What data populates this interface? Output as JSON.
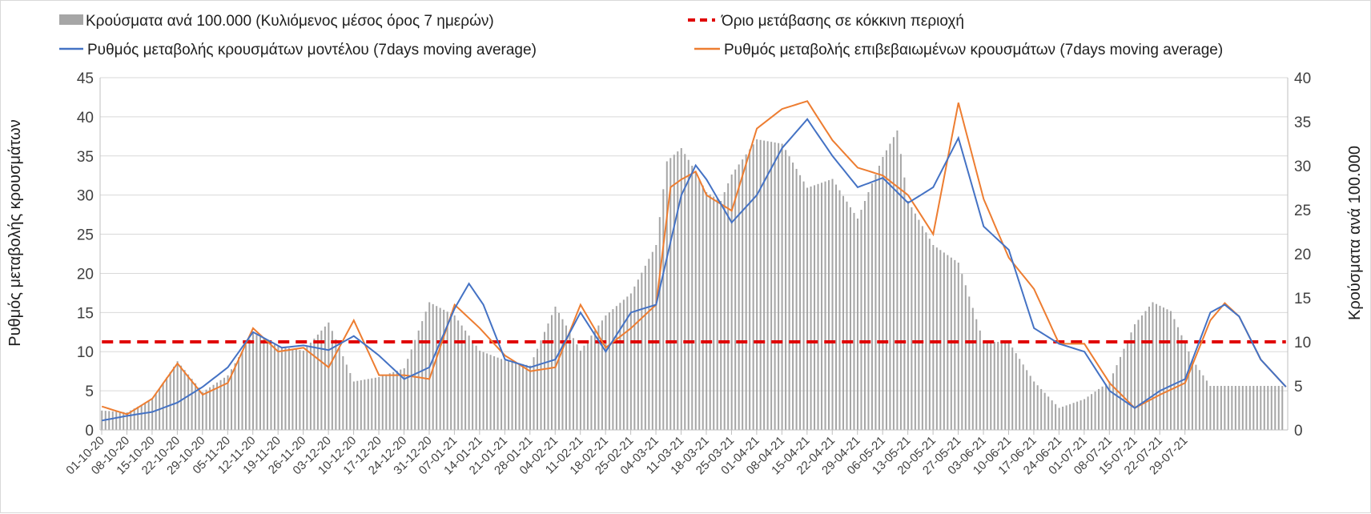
{
  "chart_data": {
    "type": "bar+line",
    "legend": {
      "bars": "Κρούσματα ανά 100.000 (Κυλιόμενος μέσος όρος 7 ημερών)",
      "threshold": "Όριο μετάβασης σε κόκκινη περιοχή",
      "model": "Ρυθμός μεταβολής κρουσμάτων μοντέλου (7days moving average)",
      "confirmed": "Ρυθμός μεταβολής επιβεβαιωμένων κρουσμάτων (7days moving average)"
    },
    "ylabel_left": "Ρυθμός μεταβολής κρουσμάτων",
    "ylabel_right": "Κρούσματα ανά 100.000",
    "y_left": {
      "min": 0,
      "max": 45,
      "step": 5,
      "ticks": [
        "0",
        "5",
        "10",
        "15",
        "20",
        "25",
        "30",
        "35",
        "40",
        "45"
      ]
    },
    "y_right": {
      "min": 0,
      "max": 40,
      "step": 5,
      "ticks": [
        "0",
        "5",
        "10",
        "15",
        "20",
        "25",
        "30",
        "35",
        "40"
      ]
    },
    "x_tick_labels": [
      "01-10-20",
      "08-10-20",
      "15-10-20",
      "22-10-20",
      "29-10-20",
      "05-11-20",
      "12-11-20",
      "19-11-20",
      "26-11-20",
      "03-12-20",
      "10-12-20",
      "17-12-20",
      "24-12-20",
      "31-12-20",
      "07-01-21",
      "14-01-21",
      "21-01-21",
      "28-01-21",
      "04-02-21",
      "11-02-21",
      "18-02-21",
      "25-02-21",
      "04-03-21",
      "11-03-21",
      "18-03-21",
      "25-03-21",
      "01-04-21",
      "08-04-21",
      "15-04-21",
      "22-04-21",
      "29-04-21",
      "06-05-21",
      "13-05-21",
      "20-05-21",
      "27-05-21",
      "03-06-21",
      "10-06-21",
      "17-06-21",
      "24-06-21",
      "01-07-21",
      "08-07-21",
      "15-07-21",
      "22-07-21",
      "29-07-21"
    ],
    "n_days": 309,
    "threshold_value_right": 10,
    "bars_right_keypoints": [
      [
        0,
        2.2
      ],
      [
        7,
        2.0
      ],
      [
        14,
        3.5
      ],
      [
        21,
        7.8
      ],
      [
        28,
        4.3
      ],
      [
        35,
        6.2
      ],
      [
        42,
        11.0
      ],
      [
        49,
        9.5
      ],
      [
        56,
        9.0
      ],
      [
        63,
        12.2
      ],
      [
        70,
        5.5
      ],
      [
        77,
        6.0
      ],
      [
        84,
        7.0
      ],
      [
        91,
        14.5
      ],
      [
        98,
        13.0
      ],
      [
        105,
        9.0
      ],
      [
        112,
        7.9
      ],
      [
        119,
        7.3
      ],
      [
        126,
        14.0
      ],
      [
        133,
        9.0
      ],
      [
        140,
        13.0
      ],
      [
        147,
        15.5
      ],
      [
        154,
        21.0
      ],
      [
        157,
        30.5
      ],
      [
        161,
        32.0
      ],
      [
        164,
        30.0
      ],
      [
        168,
        27.0
      ],
      [
        172,
        26.0
      ],
      [
        175,
        29.0
      ],
      [
        182,
        33.0
      ],
      [
        189,
        32.5
      ],
      [
        196,
        27.5
      ],
      [
        203,
        28.5
      ],
      [
        210,
        24.0
      ],
      [
        213,
        27.0
      ],
      [
        217,
        31.0
      ],
      [
        221,
        34.0
      ],
      [
        224,
        26.0
      ],
      [
        231,
        21.0
      ],
      [
        238,
        19.0
      ],
      [
        245,
        10.0
      ],
      [
        252,
        10.0
      ],
      [
        259,
        5.5
      ],
      [
        266,
        2.5
      ],
      [
        273,
        3.5
      ],
      [
        280,
        5.5
      ],
      [
        287,
        12.0
      ],
      [
        292,
        14.5
      ],
      [
        297,
        13.5
      ],
      [
        303,
        8.0
      ],
      [
        308,
        5.0
      ]
    ],
    "model_left_keypoints": [
      [
        0,
        1.2
      ],
      [
        7,
        1.8
      ],
      [
        14,
        2.3
      ],
      [
        21,
        3.5
      ],
      [
        28,
        5.5
      ],
      [
        35,
        8.0
      ],
      [
        42,
        12.5
      ],
      [
        46,
        11.5
      ],
      [
        50,
        10.5
      ],
      [
        56,
        10.8
      ],
      [
        63,
        10.2
      ],
      [
        70,
        12.0
      ],
      [
        77,
        9.5
      ],
      [
        84,
        6.5
      ],
      [
        91,
        8.0
      ],
      [
        98,
        15.5
      ],
      [
        102,
        18.7
      ],
      [
        106,
        16.0
      ],
      [
        112,
        9.0
      ],
      [
        119,
        8.0
      ],
      [
        126,
        9.0
      ],
      [
        133,
        15.0
      ],
      [
        140,
        10.0
      ],
      [
        147,
        15.0
      ],
      [
        154,
        16.0
      ],
      [
        161,
        30.0
      ],
      [
        165,
        33.8
      ],
      [
        168,
        32.0
      ],
      [
        175,
        26.5
      ],
      [
        182,
        30.0
      ],
      [
        189,
        36.0
      ],
      [
        196,
        39.7
      ],
      [
        203,
        35.0
      ],
      [
        210,
        31.0
      ],
      [
        217,
        32.2
      ],
      [
        224,
        29.0
      ],
      [
        231,
        31.0
      ],
      [
        238,
        37.3
      ],
      [
        245,
        26.0
      ],
      [
        252,
        23.0
      ],
      [
        259,
        13.0
      ],
      [
        266,
        11.0
      ],
      [
        273,
        10.0
      ],
      [
        280,
        5.0
      ],
      [
        287,
        2.8
      ],
      [
        294,
        5.0
      ],
      [
        301,
        6.5
      ],
      [
        308,
        15.0
      ],
      [
        312,
        16.0
      ],
      [
        316,
        14.5
      ],
      [
        322,
        9.0
      ],
      [
        329,
        5.5
      ]
    ],
    "confirmed_left_keypoints": [
      [
        0,
        3.0
      ],
      [
        7,
        2.0
      ],
      [
        14,
        4.0
      ],
      [
        21,
        8.5
      ],
      [
        28,
        4.5
      ],
      [
        35,
        6.0
      ],
      [
        42,
        13.0
      ],
      [
        49,
        10.0
      ],
      [
        56,
        10.5
      ],
      [
        63,
        8.0
      ],
      [
        70,
        14.0
      ],
      [
        77,
        7.0
      ],
      [
        84,
        7.0
      ],
      [
        91,
        6.5
      ],
      [
        98,
        16.0
      ],
      [
        105,
        13.0
      ],
      [
        112,
        9.5
      ],
      [
        119,
        7.5
      ],
      [
        126,
        8.0
      ],
      [
        133,
        16.0
      ],
      [
        140,
        10.5
      ],
      [
        147,
        13.0
      ],
      [
        154,
        16.0
      ],
      [
        158,
        31.0
      ],
      [
        161,
        32.0
      ],
      [
        165,
        33.0
      ],
      [
        168,
        30.0
      ],
      [
        175,
        28.0
      ],
      [
        182,
        38.5
      ],
      [
        189,
        41.0
      ],
      [
        196,
        42.0
      ],
      [
        203,
        37.0
      ],
      [
        210,
        33.5
      ],
      [
        217,
        32.5
      ],
      [
        224,
        30.0
      ],
      [
        231,
        25.0
      ],
      [
        238,
        41.8
      ],
      [
        245,
        29.5
      ],
      [
        252,
        22.0
      ],
      [
        259,
        18.0
      ],
      [
        266,
        11.0
      ],
      [
        273,
        11.0
      ],
      [
        280,
        6.0
      ],
      [
        287,
        2.8
      ],
      [
        294,
        4.5
      ],
      [
        301,
        6.0
      ],
      [
        308,
        14.0
      ],
      [
        312,
        16.2
      ],
      [
        316,
        14.5
      ],
      [
        322,
        9.0
      ],
      [
        329,
        5.5
      ]
    ]
  }
}
